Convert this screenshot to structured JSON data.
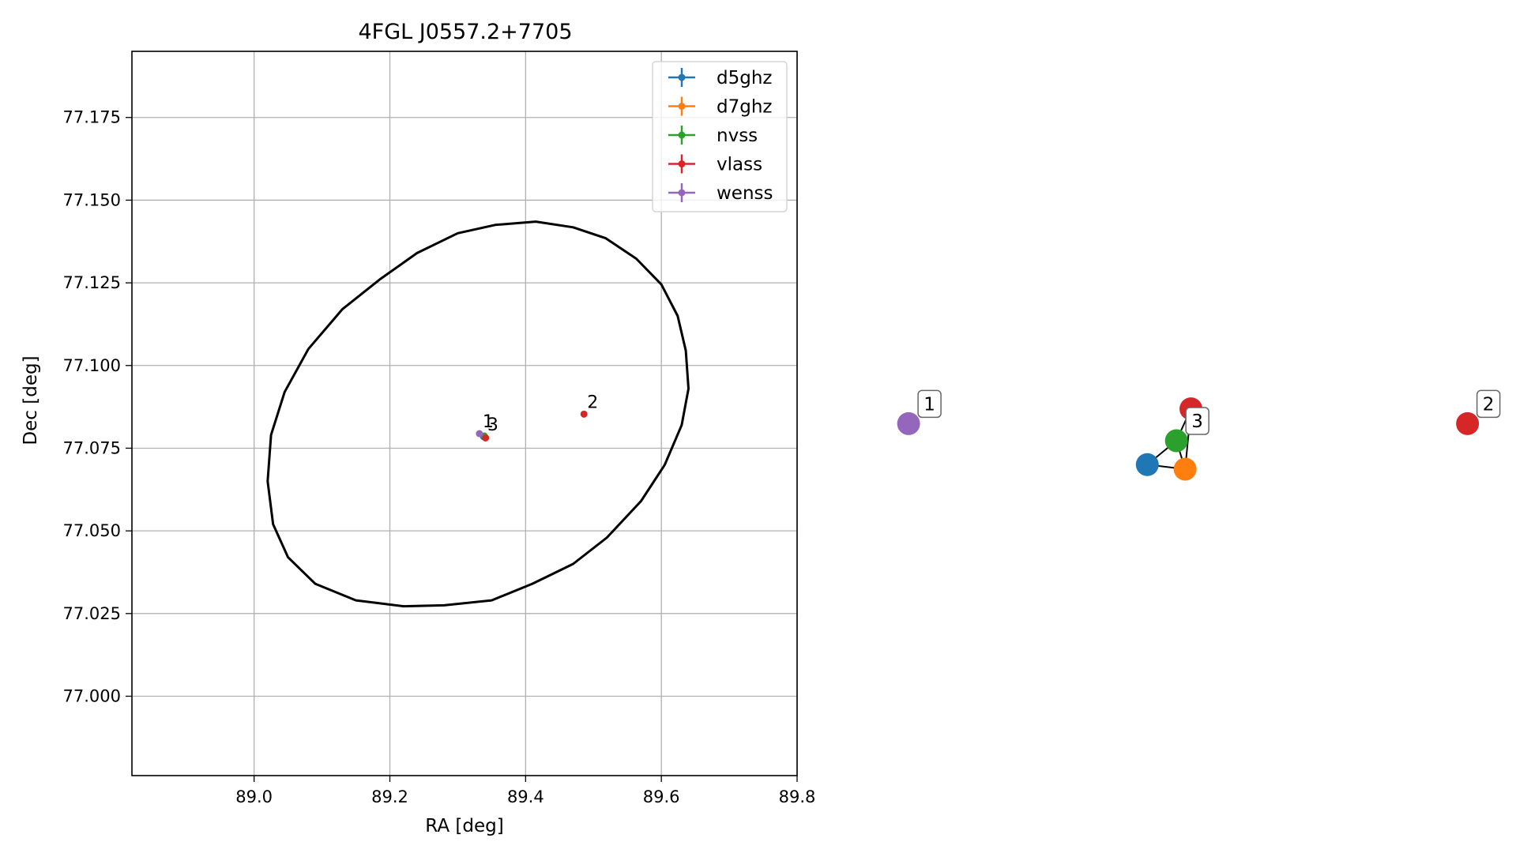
{
  "chart_data": [
    {
      "type": "scatter",
      "title": "4FGL J0557.2+7705",
      "xlabel": "RA [deg]",
      "ylabel": "Dec [deg]",
      "xlim": [
        88.82,
        89.8
      ],
      "ylim": [
        76.976,
        77.195
      ],
      "xticks": [
        89.0,
        89.2,
        89.4,
        89.6,
        89.8
      ],
      "xtick_labels": [
        "89.0",
        "89.2",
        "89.4",
        "89.6",
        "89.8"
      ],
      "yticks": [
        77.0,
        77.025,
        77.05,
        77.075,
        77.1,
        77.125,
        77.15,
        77.175
      ],
      "ytick_labels": [
        "77.000",
        "77.025",
        "77.050",
        "77.075",
        "77.100",
        "77.125",
        "77.150",
        "77.175"
      ],
      "grid": true,
      "legend_position": "top-right",
      "series": [
        {
          "name": "d5ghz",
          "color": "#1f77b4",
          "points": [
            {
              "x": 89.338,
              "y": 77.0785
            }
          ]
        },
        {
          "name": "d7ghz",
          "color": "#ff7f0e",
          "points": [
            {
              "x": 89.341,
              "y": 77.0782
            }
          ]
        },
        {
          "name": "nvss",
          "color": "#2ca02c",
          "points": [
            {
              "x": 89.339,
              "y": 77.0787
            }
          ]
        },
        {
          "name": "vlass",
          "color": "#d62728",
          "points": [
            {
              "x": 89.341,
              "y": 77.0781
            },
            {
              "x": 89.486,
              "y": 77.0853
            }
          ]
        },
        {
          "name": "wenss",
          "color": "#9467bd",
          "points": [
            {
              "x": 89.332,
              "y": 77.0794
            }
          ]
        }
      ],
      "annotations": [
        {
          "text": "1",
          "x": 89.332,
          "y": 77.0794
        },
        {
          "text": "3",
          "x": 89.339,
          "y": 77.0785
        },
        {
          "text": "2",
          "x": 89.486,
          "y": 77.0853
        }
      ],
      "ellipse": {
        "color": "#000000",
        "center": {
          "x": 89.315,
          "y": 77.0855
        },
        "points": [
          [
            89.415,
            77.1435
          ],
          [
            89.47,
            77.1418
          ],
          [
            89.518,
            77.1385
          ],
          [
            89.563,
            77.1323
          ],
          [
            89.6,
            77.1245
          ],
          [
            89.624,
            77.115
          ],
          [
            89.636,
            77.1045
          ],
          [
            89.64,
            77.093
          ],
          [
            89.63,
            77.082
          ],
          [
            89.605,
            77.07
          ],
          [
            89.57,
            77.059
          ],
          [
            89.52,
            77.048
          ],
          [
            89.47,
            77.04
          ],
          [
            89.41,
            77.034
          ],
          [
            89.35,
            77.029
          ],
          [
            89.28,
            77.0275
          ],
          [
            89.22,
            77.0272
          ],
          [
            89.15,
            77.029
          ],
          [
            89.09,
            77.034
          ],
          [
            89.05,
            77.042
          ],
          [
            89.028,
            77.052
          ],
          [
            89.02,
            77.065
          ],
          [
            89.025,
            77.079
          ],
          [
            89.045,
            77.092
          ],
          [
            89.08,
            77.105
          ],
          [
            89.13,
            77.117
          ],
          [
            89.185,
            77.126
          ],
          [
            89.24,
            77.134
          ],
          [
            89.3,
            77.14
          ],
          [
            89.355,
            77.1425
          ],
          [
            89.415,
            77.1435
          ]
        ]
      }
    },
    {
      "type": "diagram",
      "nodes": [
        {
          "id": "wenss",
          "color": "#9467bd",
          "label": "1",
          "pos": [
            0.03,
            0.6
          ]
        },
        {
          "id": "vlass_a",
          "color": "#d62728",
          "label": "",
          "pos": [
            0.515,
            0.47
          ]
        },
        {
          "id": "nvss",
          "color": "#2ca02c",
          "label": "3",
          "pos": [
            0.49,
            0.75
          ]
        },
        {
          "id": "d5ghz",
          "color": "#1f77b4",
          "label": "",
          "pos": [
            0.44,
            0.96
          ]
        },
        {
          "id": "d7ghz",
          "color": "#ff7f0e",
          "label": "",
          "pos": [
            0.505,
            1.0
          ]
        },
        {
          "id": "vlass_b",
          "color": "#d62728",
          "label": "2",
          "pos": [
            0.99,
            0.6
          ]
        }
      ],
      "edges": [
        [
          "vlass_a",
          "nvss"
        ],
        [
          "nvss",
          "d5ghz"
        ],
        [
          "nvss",
          "d7ghz"
        ],
        [
          "d5ghz",
          "d7ghz"
        ],
        [
          "vlass_a",
          "d7ghz"
        ]
      ]
    }
  ]
}
